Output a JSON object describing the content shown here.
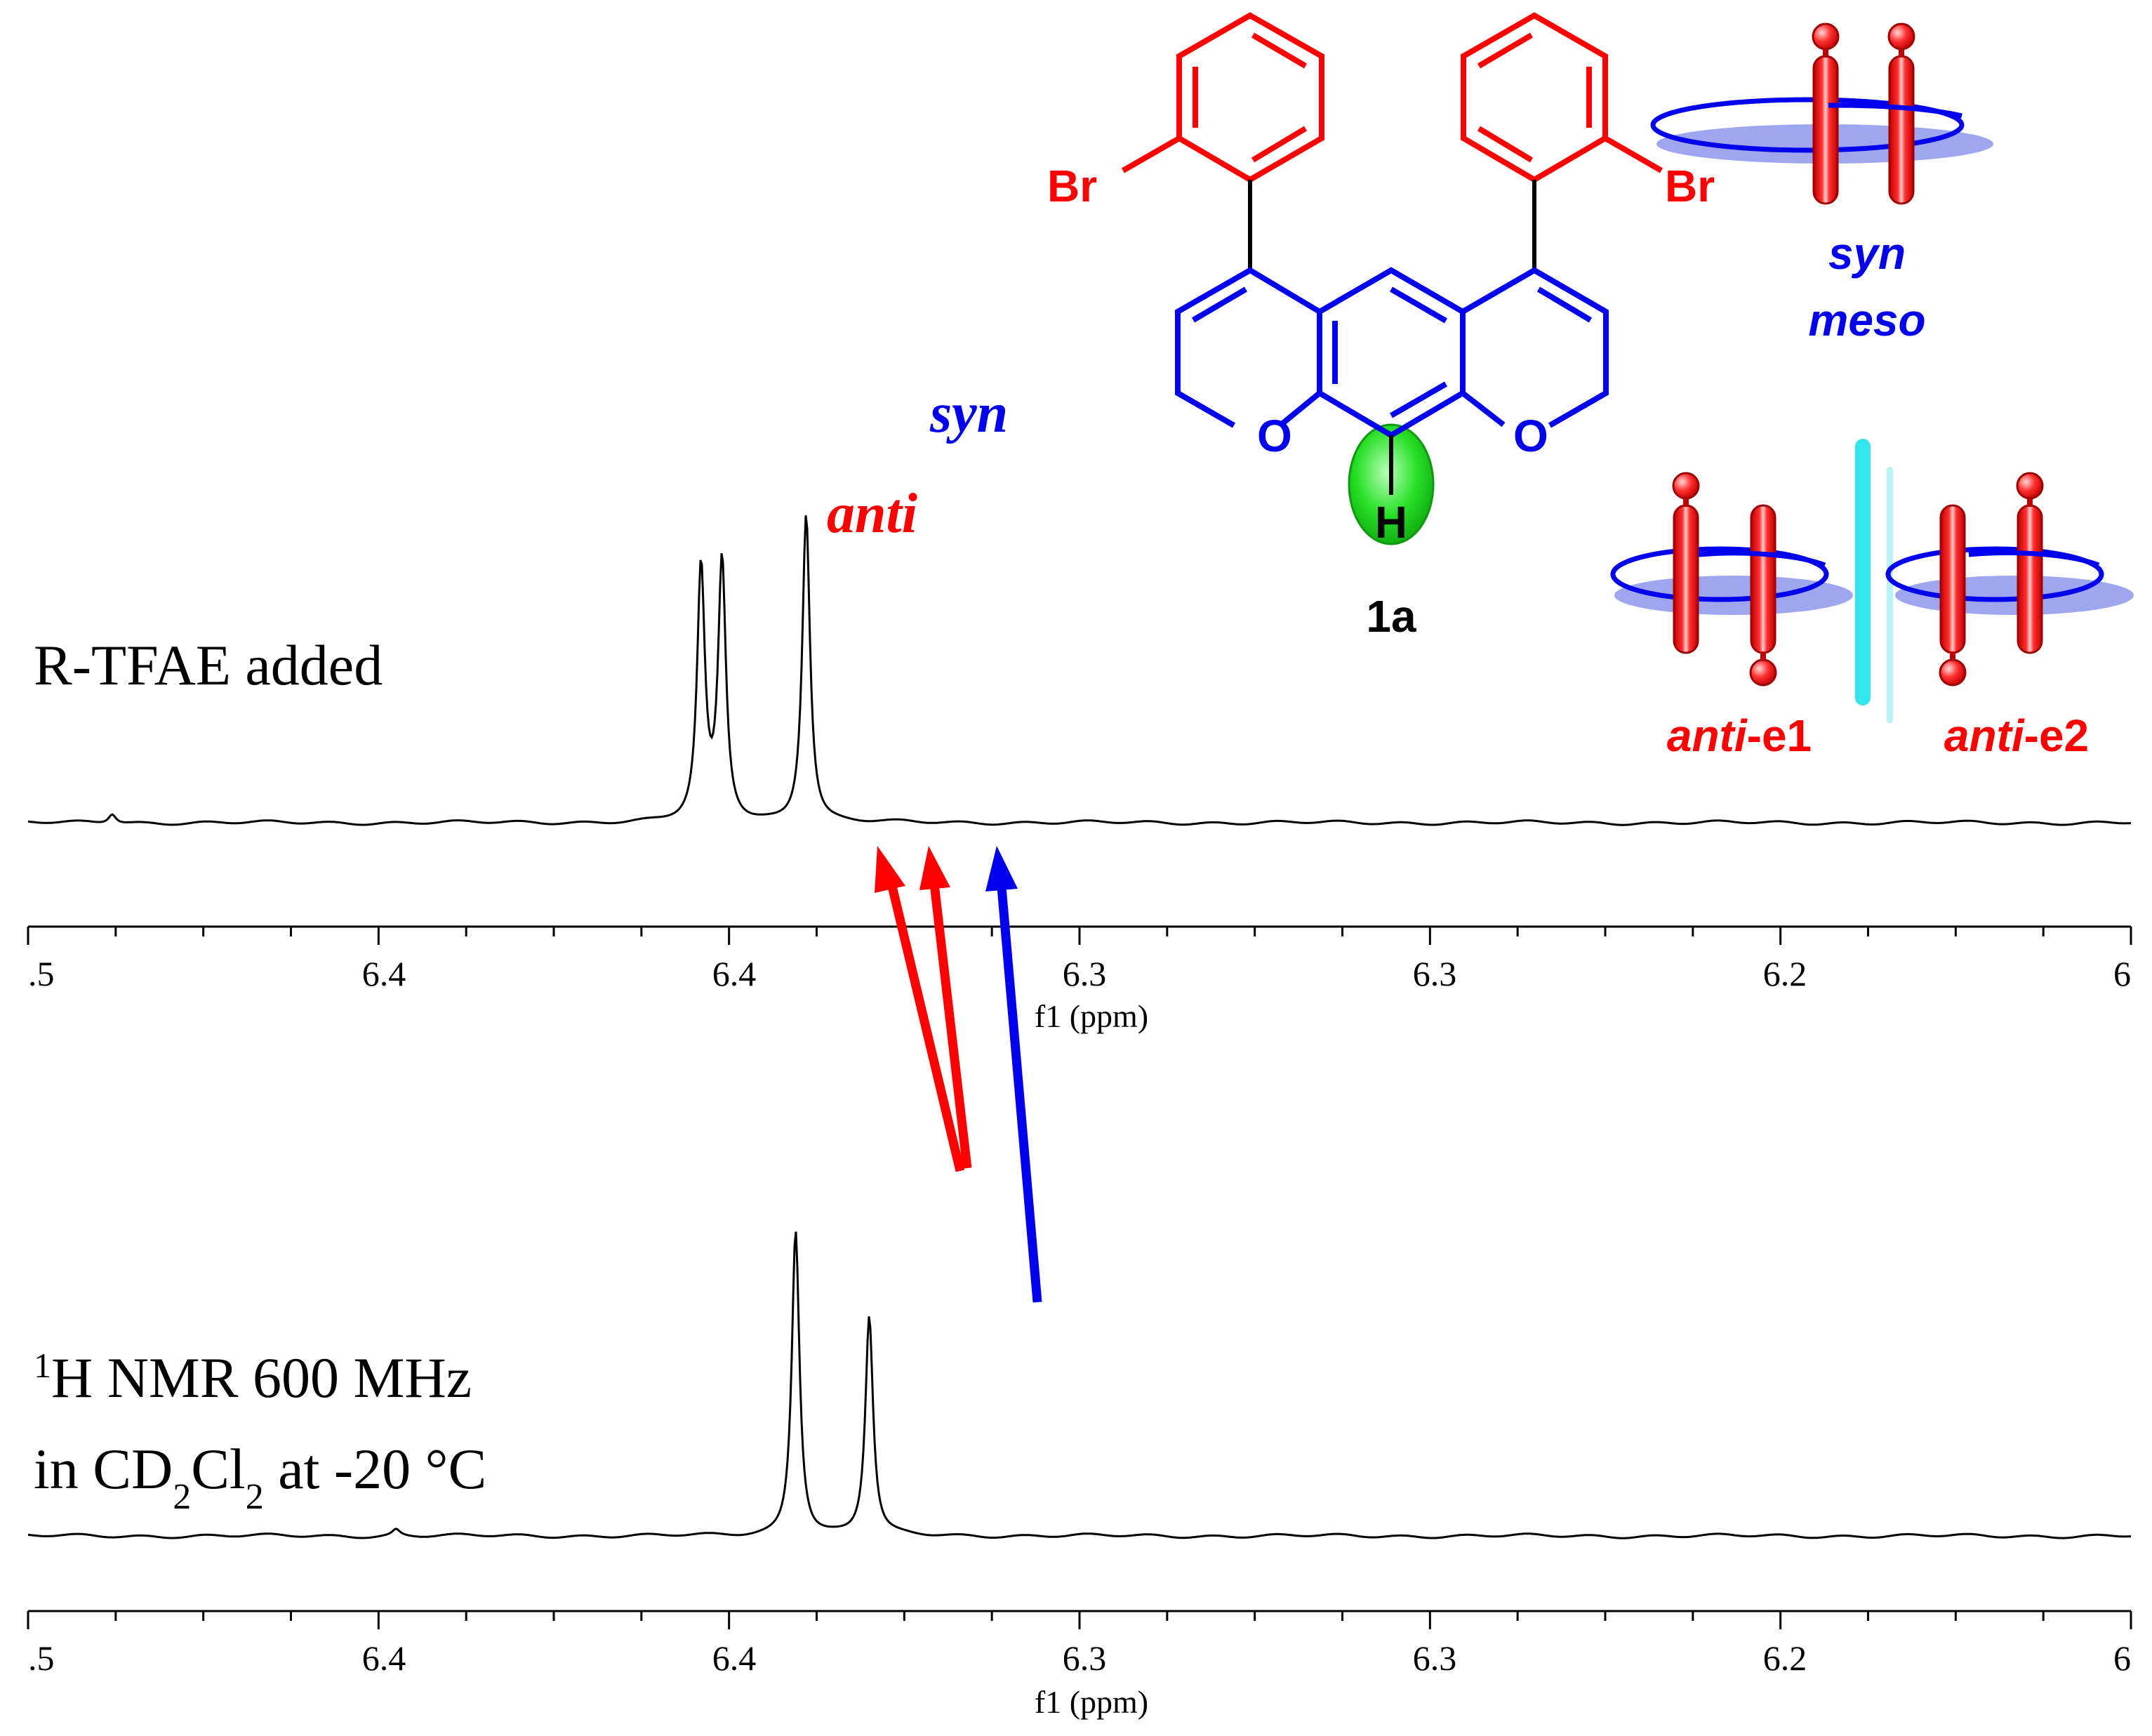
{
  "chart_data": [
    {
      "type": "line",
      "panel_label": "R-TFAE added",
      "xlabel": "f1 (ppm)",
      "x_tick_labels": [
        ".5",
        "6.4",
        "6.4",
        "6.3",
        "6.3",
        "6.2",
        "6"
      ],
      "x_range_ppm": [
        6.5,
        6.0
      ],
      "peaks": [
        {
          "x": 6.34,
          "height": 0.78
        },
        {
          "x": 6.335,
          "height": 0.8
        },
        {
          "x": 6.315,
          "height": 0.96
        },
        {
          "x": 6.48,
          "height": 0.03
        }
      ],
      "annotations": [
        {
          "text": "anti",
          "color": "#ff0000"
        },
        {
          "text": "syn",
          "color": "#0000ee"
        }
      ]
    },
    {
      "type": "line",
      "panel_label_line1": "H NMR 600 MHz",
      "panel_label_sup": "1",
      "panel_label_line2": [
        "in CD",
        "2",
        "Cl",
        "2",
        " at -20 °C"
      ],
      "xlabel": "f1 (ppm)",
      "x_tick_labels": [
        ".5",
        "6.4",
        "6.4",
        "6.3",
        "6.3",
        "6.2",
        "6"
      ],
      "x_range_ppm": [
        6.5,
        6.0
      ],
      "peaks": [
        {
          "x": 6.3175,
          "height": 0.95
        },
        {
          "x": 6.3,
          "height": 0.68
        },
        {
          "x": 6.4125,
          "height": 0.02
        }
      ]
    }
  ],
  "structure": {
    "compound_label": "1a",
    "atoms": {
      "br_left": "Br",
      "br_right": "Br",
      "o_left": "O",
      "o_right": "O",
      "h": "H"
    }
  },
  "legend": {
    "syn_line1": "syn",
    "syn_line2": "meso",
    "anti_e1_prefix": "anti",
    "anti_e1_suffix": "-e1",
    "anti_e2_prefix": "anti",
    "anti_e2_suffix": "-e2"
  },
  "colors": {
    "red": "#ff0000",
    "blue": "#0000ee",
    "green": "#22dd22",
    "cyan": "#33e6ee",
    "shadow": "#9fa6f0"
  }
}
